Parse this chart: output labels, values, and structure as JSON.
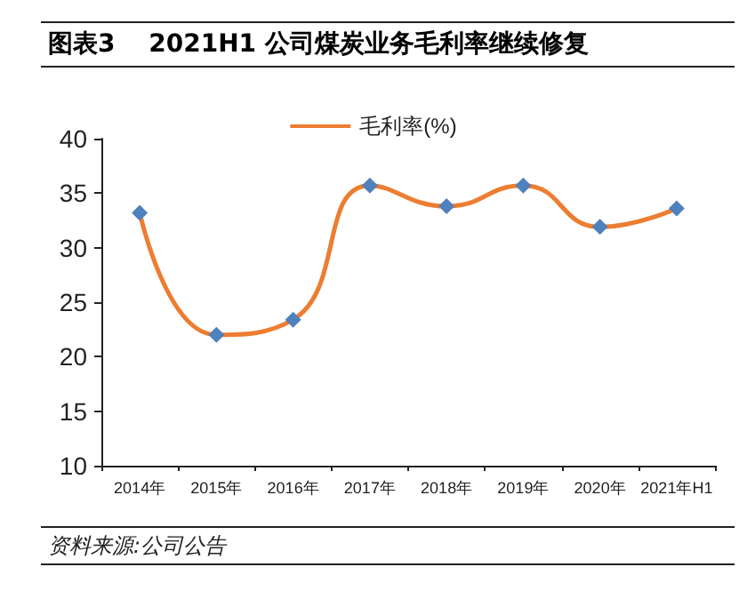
{
  "chart_data": {
    "type": "line",
    "title": "图表3　 2021H1 公司煤炭业务毛利率继续修复",
    "categories": [
      "2014年",
      "2015年",
      "2016年",
      "2017年",
      "2018年",
      "2019年",
      "2020年",
      "2021年H1"
    ],
    "series": [
      {
        "name": "毛利率(%)",
        "color": "#ed7d31",
        "colors": [
          "#4f81bd",
          "#4f81bd",
          "#4f81bd",
          "#4f81bd",
          "#4f81bd",
          "#4f81bd",
          "#4f81bd",
          "#4f81bd"
        ],
        "values": [
          33.2,
          22.0,
          23.4,
          35.7,
          33.8,
          35.7,
          31.9,
          33.6
        ]
      }
    ],
    "ylim": [
      10,
      40
    ],
    "yticks": [
      10,
      15,
      20,
      25,
      30,
      35,
      40
    ],
    "grid": false,
    "legend": "top",
    "marker": "diamond",
    "line_style": "solid",
    "annotations": [
      "资料来源:公司公告"
    ]
  }
}
